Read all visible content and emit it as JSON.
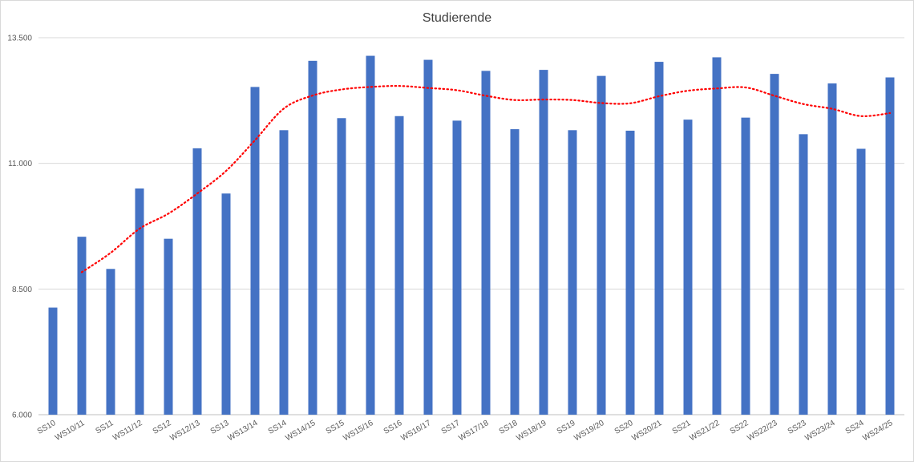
{
  "chart_data": {
    "type": "bar",
    "title": "Studierende",
    "xlabel": "",
    "ylabel": "",
    "ylim": [
      6000,
      13500
    ],
    "y_ticks": [
      6000,
      8500,
      11000,
      13500
    ],
    "y_tick_labels": [
      "6.000",
      "8.500",
      "11.000",
      "13.500"
    ],
    "grid": true,
    "legend": "none",
    "categories": [
      "SS10",
      "WS10/11",
      "SS11",
      "WS11/12",
      "SS12",
      "WS12/13",
      "SS13",
      "WS13/14",
      "SS14",
      "WS14/15",
      "SS15",
      "WS15/16",
      "SS16",
      "WS16/17",
      "SS17",
      "WS17/18",
      "SS18",
      "WS18/19",
      "SS19",
      "WS19/20",
      "SS20",
      "WS20/21",
      "SS21",
      "WS21/22",
      "SS22",
      "WS22/23",
      "SS23",
      "WS23/24",
      "SS24",
      "WS24/25"
    ],
    "series": [
      {
        "type": "bar",
        "color": "#4472c4",
        "values": [
          8130,
          9540,
          8900,
          10500,
          9500,
          11300,
          10400,
          12520,
          11660,
          13040,
          11900,
          13140,
          11940,
          13060,
          11850,
          12840,
          11680,
          12860,
          11660,
          12740,
          11650,
          13020,
          11870,
          13110,
          11910,
          12780,
          11580,
          12590,
          11290,
          12710
        ]
      },
      {
        "type": "moving-average",
        "style": "dotted",
        "color": "#ff0000",
        "period": 2
      }
    ]
  }
}
